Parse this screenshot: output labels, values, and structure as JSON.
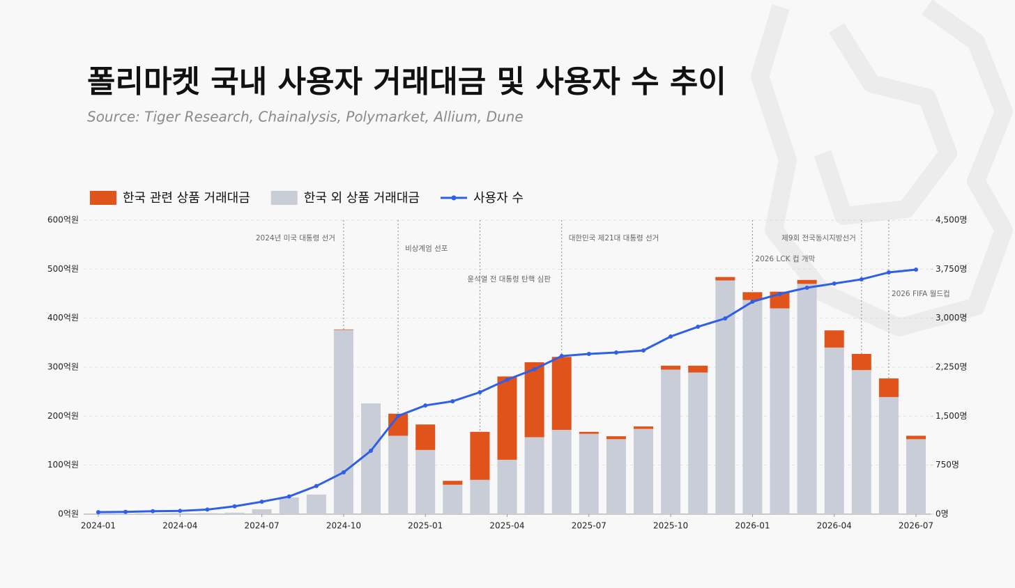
{
  "chart_data": {
    "type": "bar-line",
    "title": "폴리마켓 국내 사용자 거래대금 및 사용자 수 추이",
    "subtitle": "Source: Tiger Research, Chainalysis, Polymarket, Allium, Dune",
    "x": [
      "2024-01",
      "2024-02",
      "2024-03",
      "2024-04",
      "2024-05",
      "2024-06",
      "2024-07",
      "2024-08",
      "2024-09",
      "2024-10",
      "2024-11",
      "2024-12",
      "2025-01",
      "2025-02",
      "2025-03",
      "2025-04",
      "2025-05",
      "2025-06",
      "2025-07",
      "2025-08",
      "2025-09",
      "2025-10",
      "2025-11",
      "2025-12",
      "2026-01",
      "2026-02",
      "2026-03",
      "2026-04",
      "2026-05",
      "2026-06",
      "2026-07"
    ],
    "xticks": [
      "2024-01",
      "2024-04",
      "2024-07",
      "2024-10",
      "2025-01",
      "2025-04",
      "2025-07",
      "2025-10",
      "2026-01",
      "2026-04",
      "2026-07"
    ],
    "series": [
      {
        "name": "한국 관련 상품 거래대금",
        "color": "#e0531a",
        "kind": "bar",
        "values": [
          0,
          0,
          0,
          0,
          0,
          0,
          0,
          0,
          0,
          1,
          0,
          45,
          52,
          8,
          98,
          170,
          153,
          149,
          4,
          6,
          5,
          8,
          14,
          7,
          16,
          34,
          8,
          35,
          33,
          38,
          7
        ]
      },
      {
        "name": "한국 외 상품 거래대금",
        "color": "#c8cdd8",
        "kind": "bar",
        "values": [
          0,
          1,
          1,
          2,
          2,
          3,
          10,
          34,
          40,
          376,
          226,
          160,
          131,
          60,
          70,
          111,
          157,
          172,
          164,
          153,
          174,
          295,
          289,
          477,
          437,
          420,
          470,
          340,
          294,
          239,
          153
        ]
      },
      {
        "name": "사용자 수",
        "color": "#2e5fe8",
        "kind": "line",
        "axis": "y2",
        "values": [
          30,
          35,
          45,
          50,
          70,
          120,
          190,
          270,
          430,
          640,
          970,
          1504,
          1664,
          1728,
          1866,
          2058,
          2218,
          2420,
          2453,
          2474,
          2506,
          2719,
          2868,
          2996,
          3252,
          3370,
          3466,
          3530,
          3594,
          3700,
          3743
        ]
      }
    ],
    "stacked": true,
    "ylim": [
      0,
      600
    ],
    "yticks": [
      {
        "value": 0,
        "label": "0억원"
      },
      {
        "value": 100,
        "label": "100억원"
      },
      {
        "value": 200,
        "label": "200억원"
      },
      {
        "value": 300,
        "label": "300억원"
      },
      {
        "value": 400,
        "label": "400억원"
      },
      {
        "value": 500,
        "label": "500억원"
      },
      {
        "value": 600,
        "label": "600억원"
      }
    ],
    "y2lim": [
      0,
      4500
    ],
    "y2ticks": [
      {
        "value": 0,
        "label": "0명"
      },
      {
        "value": 750,
        "label": "750명"
      },
      {
        "value": 1500,
        "label": "1,500명"
      },
      {
        "value": 2250,
        "label": "2,250명"
      },
      {
        "value": 3000,
        "label": "3,000명"
      },
      {
        "value": 3750,
        "label": "3,750명"
      },
      {
        "value": 4500,
        "label": "4,500명"
      }
    ],
    "grid": true,
    "annotations": [
      {
        "x": "2024-10",
        "text": "2024년 미국 대통령 선거"
      },
      {
        "x": "2024-12",
        "text": "비상계엄 선포"
      },
      {
        "x": "2025-03",
        "text": "윤석열 전 대통령 탄핵 심판"
      },
      {
        "x": "2025-06",
        "text": "대한민국 제21대 대통령 선거"
      },
      {
        "x": "2026-01",
        "text": "2026 LCK 컵 개막"
      },
      {
        "x": "2026-05",
        "text": "제9회 전국동시지방선거"
      },
      {
        "x": "2026-06",
        "text": "2026 FIFA 월드컵"
      }
    ]
  }
}
